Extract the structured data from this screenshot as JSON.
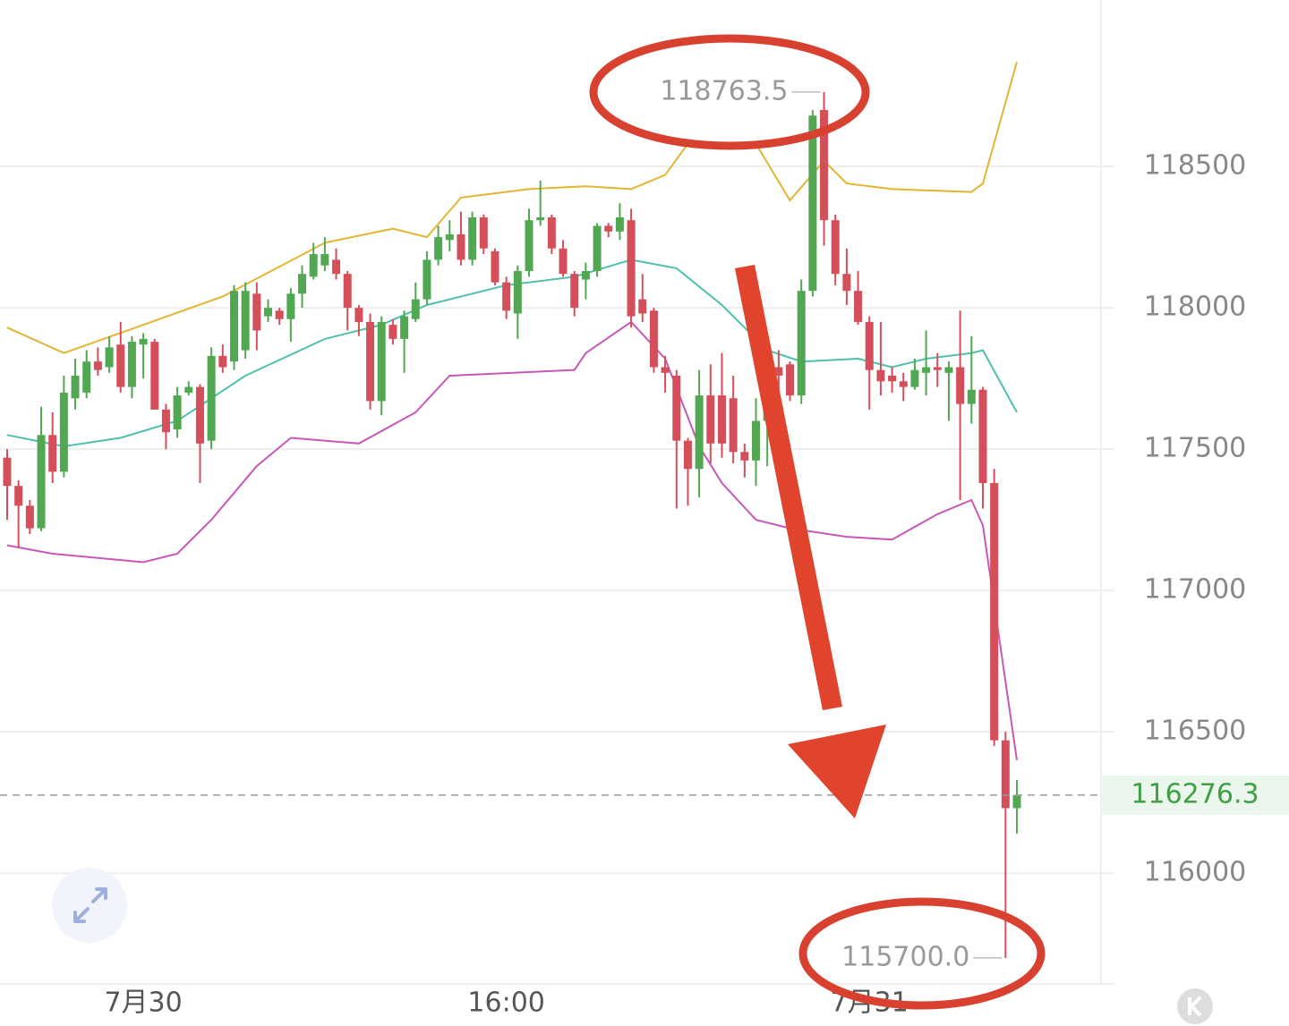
{
  "chart_data": {
    "type": "candlestick",
    "categories": [
      null,
      null,
      null,
      null,
      null,
      null,
      null,
      null,
      null,
      null,
      null,
      null,
      "7月30",
      null,
      null,
      null,
      null,
      null,
      null,
      null,
      null,
      null,
      null,
      null,
      null,
      null,
      null,
      null,
      null,
      null,
      null,
      null,
      null,
      null,
      null,
      null,
      null,
      null,
      null,
      null,
      null,
      null,
      null,
      null,
      "16:00",
      null,
      null,
      null,
      null,
      null,
      null,
      null,
      null,
      null,
      null,
      null,
      null,
      null,
      null,
      null,
      null,
      null,
      null,
      null,
      null,
      null,
      null,
      null,
      null,
      null,
      null,
      null,
      null,
      null,
      null,
      null,
      "7月31",
      null,
      null,
      null,
      null,
      null,
      null,
      null,
      null,
      null,
      null,
      null,
      null,
      null
    ],
    "open": [
      117470,
      117370,
      117300,
      117220,
      117550,
      117420,
      117680,
      117700,
      117810,
      117790,
      117870,
      117720,
      117870,
      117880,
      117640,
      117570,
      117700,
      117720,
      117530,
      117830,
      117810,
      117850,
      118050,
      117970,
      117990,
      117960,
      118050,
      118110,
      118150,
      118170,
      118120,
      118000,
      117950,
      117670,
      117940,
      117890,
      117960,
      118030,
      118170,
      118240,
      118260,
      118170,
      118320,
      118200,
      118090,
      117980,
      118130,
      118310,
      118320,
      118210,
      118120,
      118100,
      118130,
      118290,
      118270,
      118310,
      118030,
      117990,
      117790,
      117760,
      117530,
      117430,
      117690,
      117690,
      117680,
      117490,
      117460,
      117600,
      117790,
      117800,
      117690,
      118060,
      118700,
      118310,
      118120,
      118060,
      117950,
      117780,
      117760,
      117740,
      117720,
      117770,
      117790,
      117770,
      117790,
      117660,
      117710,
      117380,
      116470,
      116230
    ],
    "high": [
      117500,
      117390,
      117320,
      117650,
      117630,
      117760,
      117820,
      117850,
      117860,
      117900,
      117950,
      117900,
      117910,
      117890,
      117660,
      117720,
      117740,
      117730,
      117860,
      117870,
      118080,
      118090,
      118090,
      118030,
      118000,
      118070,
      118150,
      118230,
      118250,
      118210,
      118130,
      118010,
      117980,
      117970,
      117960,
      117990,
      118090,
      118200,
      118290,
      118310,
      118340,
      118340,
      118330,
      118210,
      118110,
      118150,
      118350,
      118450,
      118330,
      118240,
      118130,
      118160,
      118300,
      118300,
      118370,
      118350,
      118120,
      118000,
      117830,
      117780,
      117540,
      117780,
      117800,
      117840,
      117760,
      117520,
      117680,
      117790,
      117850,
      117810,
      118100,
      118700,
      118763.5,
      118330,
      118210,
      118130,
      117970,
      117950,
      117790,
      117770,
      117820,
      117920,
      117840,
      117810,
      117990,
      117900,
      117720,
      117430,
      116500,
      116330
    ],
    "low": [
      117250,
      117150,
      117200,
      117210,
      117380,
      117400,
      117640,
      117680,
      117760,
      117770,
      117700,
      117680,
      117750,
      117640,
      117500,
      117540,
      117690,
      117380,
      117500,
      117770,
      117780,
      117820,
      117850,
      117950,
      117940,
      117880,
      118000,
      118100,
      118130,
      118100,
      117920,
      117900,
      117640,
      117620,
      117870,
      117770,
      117950,
      118010,
      118150,
      118200,
      118150,
      118150,
      118190,
      118080,
      117960,
      117890,
      118110,
      118290,
      118190,
      118110,
      117970,
      118030,
      118110,
      118250,
      118240,
      117930,
      117950,
      117770,
      117700,
      117290,
      117300,
      117330,
      117450,
      117470,
      117450,
      117400,
      117370,
      117440,
      117700,
      117670,
      117660,
      118040,
      118220,
      118080,
      118010,
      117940,
      117640,
      117690,
      117700,
      117670,
      117710,
      117690,
      117720,
      117600,
      117320,
      117590,
      117290,
      116450,
      115700.0,
      116140
    ],
    "close": [
      117370,
      117300,
      117220,
      117550,
      117420,
      117700,
      117760,
      117810,
      117780,
      117860,
      117720,
      117880,
      117890,
      117640,
      117560,
      117690,
      117720,
      117520,
      117830,
      117790,
      118060,
      118060,
      117920,
      118000,
      117960,
      118050,
      118120,
      118190,
      118190,
      118120,
      118000,
      117950,
      117670,
      117950,
      117890,
      117970,
      118030,
      118170,
      118250,
      118260,
      118170,
      118320,
      118210,
      118090,
      117990,
      118130,
      118310,
      118320,
      118210,
      118120,
      118000,
      118130,
      118290,
      118270,
      118320,
      117970,
      117980,
      117790,
      117770,
      117530,
      117430,
      117690,
      117520,
      117520,
      117490,
      117460,
      117600,
      117760,
      117760,
      117690,
      118060,
      118680,
      118310,
      118120,
      118060,
      117950,
      117780,
      117740,
      117740,
      117720,
      117780,
      117790,
      117780,
      117790,
      117660,
      117710,
      117380,
      116470,
      116230,
      116276.3
    ],
    "up_color": "#52a852",
    "down_color": "#d44f5a",
    "series": [
      {
        "color": "#e2b532",
        "x": [
          0,
          5,
          19,
          28,
          34,
          37,
          40,
          46,
          51,
          55,
          58,
          60,
          66,
          69,
          72,
          74,
          78,
          85,
          86,
          89
        ],
        "values": [
          117930,
          117840,
          118040,
          118230,
          118280,
          118250,
          118390,
          118420,
          118430,
          118420,
          118470,
          118580,
          118580,
          118380,
          118520,
          118440,
          118420,
          118410,
          118440,
          118870
        ]
      },
      {
        "color": "#4fbfae",
        "x": [
          0,
          5,
          10,
          15,
          21,
          28,
          33,
          37,
          44,
          50,
          55,
          59,
          63,
          67,
          70,
          75,
          78,
          81,
          85,
          86,
          89
        ],
        "values": [
          117550,
          117510,
          117540,
          117600,
          117760,
          117890,
          117940,
          118010,
          118080,
          118110,
          118170,
          118140,
          118010,
          117850,
          117810,
          117820,
          117790,
          117820,
          117840,
          117850,
          117630
        ]
      },
      {
        "color": "#c858b8",
        "x": [
          0,
          4,
          12,
          15,
          18,
          22,
          25,
          31,
          36,
          39,
          50,
          51,
          55,
          58,
          61,
          63,
          66,
          69,
          74,
          78,
          82,
          85,
          86,
          89
        ],
        "values": [
          117160,
          117130,
          117100,
          117130,
          117250,
          117440,
          117540,
          117520,
          117630,
          117760,
          117780,
          117840,
          117950,
          117820,
          117510,
          117380,
          117250,
          117220,
          117190,
          117180,
          117270,
          117320,
          117230,
          116400
        ]
      }
    ],
    "ylim": [
      115608,
      119089
    ],
    "yticks": [
      116000,
      116500,
      117000,
      117500,
      118000,
      118500
    ],
    "grid": true,
    "max_label": {
      "value": 118763.5,
      "label": "118763.5"
    },
    "min_label": {
      "value": 115700.0,
      "label": "115700.0"
    },
    "last_price": {
      "value": 116276.3,
      "label": "116276.3"
    }
  }
}
